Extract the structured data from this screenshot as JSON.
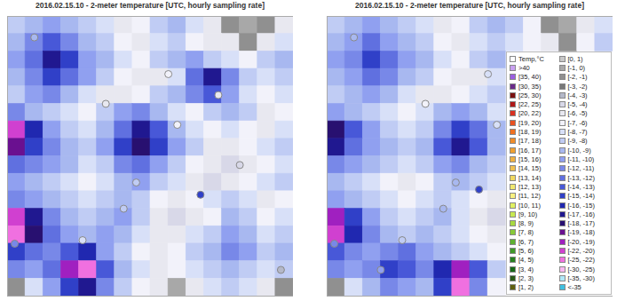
{
  "chart_data": [
    {
      "type": "heatmap",
      "title": "2016.02.15.10 - 2-meter temperature [UTC, hourly sampling rate]",
      "xlim": [
        0,
        16
      ],
      "ylim": [
        16,
        0
      ],
      "tick_labels": false,
      "cells": [
        [
          -9,
          -10,
          -11,
          -10,
          -9,
          -8,
          -6,
          -7,
          -9,
          -10,
          -8,
          -6,
          -2,
          -1,
          -2,
          -6
        ],
        [
          -10,
          -12,
          -14,
          -12,
          -10,
          -9,
          -7,
          -6,
          -8,
          -9,
          -7,
          -6,
          -6,
          -2,
          -6,
          -8
        ],
        [
          -11,
          -13,
          -17,
          -15,
          -11,
          -10,
          -8,
          -7,
          -9,
          -10,
          -11,
          -9,
          -8,
          -7,
          -9,
          -10
        ],
        [
          -10,
          -12,
          -15,
          -13,
          -11,
          -9,
          -7,
          -6,
          -6,
          -8,
          -13,
          -17,
          -12,
          -9,
          -8,
          -9
        ],
        [
          -9,
          -11,
          -12,
          -10,
          -8,
          -6,
          -6,
          -7,
          -9,
          -10,
          -12,
          -14,
          -11,
          -8,
          -7,
          -8
        ],
        [
          -12,
          -10,
          -9,
          -8,
          -7,
          -9,
          -11,
          -12,
          -10,
          -8,
          -7,
          -9,
          -10,
          -9,
          -6,
          -7
        ],
        [
          -21,
          -16,
          -11,
          -9,
          -8,
          -10,
          -13,
          -17,
          -14,
          -10,
          -8,
          -7,
          -8,
          -7,
          -6,
          -8
        ],
        [
          -19,
          -15,
          -12,
          -10,
          -9,
          -11,
          -15,
          -18,
          -15,
          -11,
          -9,
          -6,
          -6,
          -7,
          -8,
          -9
        ],
        [
          -13,
          -12,
          -11,
          -10,
          -8,
          -9,
          -12,
          -13,
          -11,
          -9,
          -7,
          -6,
          -5,
          -6,
          -7,
          -8
        ],
        [
          -11,
          -10,
          -9,
          -8,
          -7,
          -8,
          -10,
          -11,
          -9,
          -8,
          -6,
          -5,
          -6,
          -7,
          -8,
          -9
        ],
        [
          -12,
          -11,
          -10,
          -9,
          -8,
          -9,
          -10,
          -9,
          -7,
          -6,
          -7,
          -8,
          -9,
          -8,
          -6,
          -7
        ],
        [
          -22,
          -17,
          -12,
          -10,
          -9,
          -10,
          -11,
          -9,
          -6,
          -5,
          -6,
          -7,
          -10,
          -9,
          -7,
          -8
        ],
        [
          -23,
          -18,
          -13,
          -11,
          -10,
          -11,
          -10,
          -8,
          -6,
          -6,
          -8,
          -9,
          -11,
          -10,
          -8,
          -9
        ],
        [
          -15,
          -13,
          -12,
          -14,
          -16,
          -11,
          -9,
          -7,
          -6,
          -7,
          -9,
          -10,
          -12,
          -11,
          -9,
          -10
        ],
        [
          -12,
          -11,
          -13,
          -20,
          -23,
          -14,
          -10,
          -8,
          -6,
          -7,
          -8,
          -9,
          -10,
          -9,
          -8,
          -9
        ],
        [
          -2,
          -8,
          -11,
          -15,
          -17,
          -12,
          -9,
          -7,
          -6,
          -1,
          -6,
          -8,
          -9,
          -8,
          -6,
          -2
        ]
      ],
      "stations": [
        {
          "x": 1.5,
          "y": 1.2,
          "value": -10
        },
        {
          "x": 9.0,
          "y": 3.3,
          "value": -7
        },
        {
          "x": 5.5,
          "y": 5.0,
          "value": -6
        },
        {
          "x": 7.2,
          "y": 9.5,
          "value": -9
        },
        {
          "x": 9.5,
          "y": 6.2,
          "value": -7
        },
        {
          "x": 11.8,
          "y": 4.5,
          "value": -6
        },
        {
          "x": 13.0,
          "y": 8.5,
          "value": -5
        },
        {
          "x": 4.2,
          "y": 12.8,
          "value": -8
        },
        {
          "x": 15.3,
          "y": 14.5,
          "value": -4
        },
        {
          "x": 0.4,
          "y": 13.0,
          "value": -12
        },
        {
          "x": 10.8,
          "y": 10.2,
          "value": -15
        },
        {
          "x": 6.5,
          "y": 11.0,
          "value": -9
        }
      ]
    },
    {
      "type": "heatmap",
      "title": "2016.02.15.10 - 2-meter temperature [UTC, hourly sampling rate]",
      "xlim": [
        0,
        16
      ],
      "ylim": [
        16,
        0
      ],
      "tick_labels": false,
      "legend": "right",
      "cells": [
        [
          -9,
          -10,
          -11,
          -10,
          -9,
          -8,
          -6,
          -7,
          -9,
          -10,
          -9,
          -7,
          -2,
          -1,
          -6,
          -8
        ],
        [
          -10,
          -11,
          -13,
          -11,
          -10,
          -9,
          -7,
          -6,
          -8,
          -9,
          -8,
          -7,
          -6,
          -2,
          -7,
          -9
        ],
        [
          -11,
          -12,
          -15,
          -13,
          -11,
          -10,
          -8,
          -7,
          -9,
          -10,
          null,
          null,
          null,
          null,
          null,
          null
        ],
        [
          -10,
          -11,
          -13,
          -12,
          -10,
          -9,
          -7,
          -6,
          -6,
          -8,
          null,
          null,
          null,
          null,
          null,
          null
        ],
        [
          -9,
          -10,
          -11,
          -10,
          -8,
          -6,
          -6,
          -7,
          -8,
          -9,
          null,
          null,
          null,
          null,
          null,
          null
        ],
        [
          -11,
          -10,
          -9,
          -8,
          -7,
          -8,
          -10,
          -11,
          -10,
          -8,
          null,
          null,
          null,
          null,
          null,
          null
        ],
        [
          -18,
          -14,
          -11,
          -9,
          -8,
          -9,
          -12,
          -15,
          -13,
          -10,
          null,
          null,
          null,
          null,
          null,
          null
        ],
        [
          -17,
          -13,
          -11,
          -10,
          -9,
          -10,
          -14,
          -17,
          -14,
          -10,
          null,
          null,
          null,
          null,
          null,
          null
        ],
        [
          -12,
          -11,
          -10,
          -9,
          -8,
          -9,
          -11,
          -12,
          -10,
          -9,
          null,
          null,
          null,
          null,
          null,
          null
        ],
        [
          -10,
          -9,
          -8,
          -7,
          -6,
          -7,
          -9,
          -10,
          -9,
          -8,
          null,
          null,
          null,
          null,
          null,
          null
        ],
        [
          -11,
          -10,
          -9,
          -8,
          -7,
          -8,
          -9,
          -8,
          -7,
          -6,
          null,
          null,
          null,
          null,
          null,
          null
        ],
        [
          -20,
          -15,
          -11,
          -9,
          -8,
          -9,
          -10,
          -8,
          -6,
          -5,
          null,
          null,
          null,
          null,
          null,
          null
        ],
        [
          -21,
          -16,
          -12,
          -10,
          -9,
          -10,
          -9,
          -8,
          -7,
          -6,
          null,
          null,
          null,
          null,
          null,
          null
        ],
        [
          -14,
          -12,
          -11,
          -12,
          -13,
          -11,
          -10,
          -9,
          -8,
          -7,
          null,
          null,
          null,
          null,
          null,
          null
        ],
        [
          -12,
          -11,
          -12,
          -15,
          -14,
          -12,
          -16,
          -20,
          -14,
          -9,
          null,
          null,
          null,
          null,
          null,
          null
        ],
        [
          -2,
          -8,
          -10,
          -12,
          -11,
          -10,
          -15,
          -23,
          -12,
          -7,
          null,
          null,
          null,
          null,
          null,
          null
        ]
      ],
      "stations": [
        {
          "x": 1.5,
          "y": 1.2,
          "value": -10
        },
        {
          "x": 9.0,
          "y": 3.3,
          "value": -8
        },
        {
          "x": 5.5,
          "y": 5.0,
          "value": -7
        },
        {
          "x": 7.2,
          "y": 9.5,
          "value": -10
        },
        {
          "x": 9.5,
          "y": 6.2,
          "value": -8
        },
        {
          "x": 4.2,
          "y": 12.8,
          "value": -9
        },
        {
          "x": 0.4,
          "y": 13.0,
          "value": -12
        },
        {
          "x": 8.5,
          "y": 9.9,
          "value": -15
        },
        {
          "x": 6.5,
          "y": 11.0,
          "value": -10
        },
        {
          "x": 3.0,
          "y": 14.5,
          "value": -11
        }
      ]
    }
  ],
  "color_bar": {
    "title": "Temp,°C",
    "bins": [
      {
        "label": ">40",
        "min": 40,
        "max": null,
        "color": "#c9a0f0"
      },
      {
        "label": "[35, 40)",
        "min": 35,
        "max": 40,
        "color": "#9b5fe0"
      },
      {
        "label": "[30, 35)",
        "min": 30,
        "max": 35,
        "color": "#6a2a8a"
      },
      {
        "label": "[25, 30)",
        "min": 25,
        "max": 30,
        "color": "#7a1010"
      },
      {
        "label": "[22, 25)",
        "min": 22,
        "max": 25,
        "color": "#b01818"
      },
      {
        "label": "[20, 22)",
        "min": 20,
        "max": 22,
        "color": "#d83020"
      },
      {
        "label": "[19, 20)",
        "min": 19,
        "max": 20,
        "color": "#e85020"
      },
      {
        "label": "[18, 19)",
        "min": 18,
        "max": 19,
        "color": "#f07020"
      },
      {
        "label": "[17, 18)",
        "min": 17,
        "max": 18,
        "color": "#f08c28"
      },
      {
        "label": "[16, 17)",
        "min": 16,
        "max": 17,
        "color": "#f0a030"
      },
      {
        "label": "[15, 16)",
        "min": 15,
        "max": 16,
        "color": "#f0b040"
      },
      {
        "label": "[14, 15)",
        "min": 14,
        "max": 15,
        "color": "#f0c050"
      },
      {
        "label": "[13, 14)",
        "min": 13,
        "max": 14,
        "color": "#f0d860"
      },
      {
        "label": "[12, 13)",
        "min": 12,
        "max": 13,
        "color": "#f0e870"
      },
      {
        "label": "[11, 12)",
        "min": 11,
        "max": 12,
        "color": "#f8f080"
      },
      {
        "label": "[10, 11)",
        "min": 10,
        "max": 11,
        "color": "#e0f060"
      },
      {
        "label": "[9, 10)",
        "min": 9,
        "max": 10,
        "color": "#c8e850"
      },
      {
        "label": "[8, 9)",
        "min": 8,
        "max": 9,
        "color": "#a8d840"
      },
      {
        "label": "[7, 8)",
        "min": 7,
        "max": 8,
        "color": "#88c838"
      },
      {
        "label": "[6, 7)",
        "min": 6,
        "max": 7,
        "color": "#60b030"
      },
      {
        "label": "[5, 6)",
        "min": 5,
        "max": 6,
        "color": "#409828"
      },
      {
        "label": "[4, 5)",
        "min": 4,
        "max": 5,
        "color": "#288020"
      },
      {
        "label": "[3, 4)",
        "min": 3,
        "max": 4,
        "color": "#186818"
      },
      {
        "label": "[2, 3)",
        "min": 2,
        "max": 3,
        "color": "#2a5a18"
      },
      {
        "label": "[1, 2)",
        "min": 1,
        "max": 2,
        "color": "#606010"
      },
      {
        "label": "[0, 1)",
        "min": 0,
        "max": 1,
        "color": "#c8c8c8"
      },
      {
        "label": "[-1, 0)",
        "min": -1,
        "max": 0,
        "color": "#a8a8a8"
      },
      {
        "label": "[-2, -1)",
        "min": -2,
        "max": -1,
        "color": "#909090"
      },
      {
        "label": "[-3, -2)",
        "min": -3,
        "max": -2,
        "color": "#787878"
      },
      {
        "label": "[-4, -3)",
        "min": -4,
        "max": -3,
        "color": "#b4b8c8"
      },
      {
        "label": "[-5, -4)",
        "min": -5,
        "max": -4,
        "color": "#d8d8e8"
      },
      {
        "label": "[-6, -5)",
        "min": -6,
        "max": -5,
        "color": "#e8e8f0"
      },
      {
        "label": "[-7, -6)",
        "min": -7,
        "max": -6,
        "color": "#f2f2fa"
      },
      {
        "label": "[-8, -7)",
        "min": -8,
        "max": -7,
        "color": "#d8e0f8"
      },
      {
        "label": "[-9, -8)",
        "min": -9,
        "max": -8,
        "color": "#c0ccf4"
      },
      {
        "label": "[-10, -9)",
        "min": -10,
        "max": -9,
        "color": "#a8b8f0"
      },
      {
        "label": "[-11, -10)",
        "min": -11,
        "max": -10,
        "color": "#90a0f0"
      },
      {
        "label": "[-12, -11)",
        "min": -12,
        "max": -11,
        "color": "#7888e8"
      },
      {
        "label": "[-13, -12)",
        "min": -13,
        "max": -12,
        "color": "#6070e0"
      },
      {
        "label": "[-14, -13)",
        "min": -14,
        "max": -13,
        "color": "#4858d8"
      },
      {
        "label": "[-15, -14)",
        "min": -15,
        "max": -14,
        "color": "#3040c8"
      },
      {
        "label": "[-16, -15)",
        "min": -16,
        "max": -15,
        "color": "#2028b0"
      },
      {
        "label": "[-17, -16)",
        "min": -17,
        "max": -16,
        "color": "#201890"
      },
      {
        "label": "[-18, -17)",
        "min": -18,
        "max": -17,
        "color": "#281070"
      },
      {
        "label": "[-19, -18)",
        "min": -19,
        "max": -18,
        "color": "#6a1090"
      },
      {
        "label": "[-20, -19)",
        "min": -20,
        "max": -19,
        "color": "#a020c0"
      },
      {
        "label": "[-22, -20)",
        "min": -22,
        "max": -20,
        "color": "#d040d0"
      },
      {
        "label": "[-25, -22)",
        "min": -25,
        "max": -22,
        "color": "#f070e0"
      },
      {
        "label": "[-30, -25)",
        "min": -30,
        "max": -25,
        "color": "#f8b8f0"
      },
      {
        "label": "[-35, -30)",
        "min": -35,
        "max": -30,
        "color": "#b0e8f8"
      },
      {
        "label": "<-35",
        "min": null,
        "max": -35,
        "color": "#40c0e0"
      }
    ]
  }
}
